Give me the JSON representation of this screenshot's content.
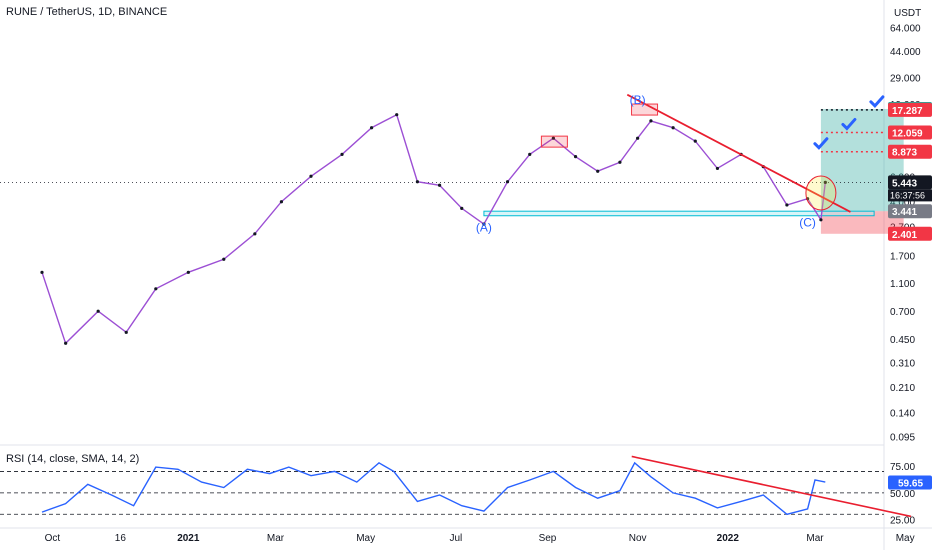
{
  "header": {
    "symbol_line": "RUNE / TetherUS, 1D, BINANCE"
  },
  "rsi_panel": {
    "label": "RSI (14, close, SMA, 14, 2)",
    "value": "59.65",
    "value_color": "#2962ff"
  },
  "chart_data": [
    {
      "type": "candlestick",
      "title": "RUNE / TetherUS, 1D, BINANCE",
      "scale": "log",
      "ylabel": "USDT",
      "yticks": [
        "64.000",
        "44.000",
        "29.000",
        "19.000",
        "12.000",
        "6.000",
        "4.000",
        "2.700",
        "1.700",
        "1.100",
        "0.700",
        "0.450",
        "0.310",
        "0.210",
        "0.140",
        "0.095"
      ],
      "xticks": [
        "Oct",
        "16",
        "2021",
        "Mar",
        "May",
        "Jul",
        "Sep",
        "Nov",
        "2022",
        "Mar",
        "May"
      ],
      "ylim": [
        0.09,
        70
      ],
      "up_color": "#131722",
      "down_color": "#9c4fd4",
      "last_price": 5.443,
      "countdown": "16:37:56",
      "series": [
        {
          "name": "price",
          "x": [
            "2020-09-24",
            "2020-10-10",
            "2020-11-01",
            "2020-11-20",
            "2020-12-10",
            "2021-01-01",
            "2021-01-25",
            "2021-02-15",
            "2021-03-05",
            "2021-03-25",
            "2021-04-15",
            "2021-05-05",
            "2021-05-22",
            "2021-06-05",
            "2021-06-20",
            "2021-07-05",
            "2021-07-20",
            "2021-08-05",
            "2021-08-20",
            "2021-09-05",
            "2021-09-20",
            "2021-10-05",
            "2021-10-20",
            "2021-11-01",
            "2021-11-10",
            "2021-11-25",
            "2021-12-10",
            "2021-12-25",
            "2022-01-10",
            "2022-01-25",
            "2022-02-10",
            "2022-02-24",
            "2022-03-05",
            "2022-03-08"
          ],
          "values": [
            1.3,
            0.42,
            0.7,
            0.5,
            1.0,
            1.3,
            1.6,
            2.4,
            4.0,
            6.0,
            8.5,
            13.0,
            16.0,
            5.5,
            5.2,
            3.6,
            2.8,
            5.5,
            8.5,
            11.0,
            8.2,
            6.5,
            7.5,
            11.0,
            14.5,
            13.0,
            10.5,
            6.8,
            8.5,
            7.0,
            3.8,
            4.2,
            3.0,
            5.443
          ]
        }
      ],
      "annotations": [
        {
          "text": "(A)",
          "x": "2021-07-20",
          "y": 2.5,
          "color": "#2962ff"
        },
        {
          "text": "(B)",
          "x": "2021-11-01",
          "y": 19.0,
          "color": "#2962ff"
        },
        {
          "text": "(C)",
          "x": "2022-02-24",
          "y": 2.7,
          "color": "#2962ff"
        }
      ],
      "support_zone": {
        "y_low": 3.2,
        "y_high": 3.441,
        "x_start": "2021-07-20",
        "x_end": "2022-04-10"
      },
      "trendline": {
        "x_start": "2021-10-25",
        "y_start": 22.0,
        "x_end": "2022-03-25",
        "y_end": 3.4,
        "color": "#e91e2f"
      },
      "position": {
        "entry": 3.441,
        "stop": 2.401,
        "target": 17.519,
        "x_start": "2022-03-05",
        "x_end": "2022-04-30"
      },
      "targets": [
        8.873,
        12.059,
        17.287
      ],
      "price_tags": [
        {
          "value": "17.519",
          "color": "#26a69a"
        },
        {
          "value": "17.287",
          "color": "#f23645"
        },
        {
          "value": "12.059",
          "color": "#f23645"
        },
        {
          "value": "8.873",
          "color": "#f23645"
        },
        {
          "value": "5.443",
          "color": "#131722"
        },
        {
          "value": "3.441",
          "color": "#787b86"
        },
        {
          "value": "2.401",
          "color": "#f23645"
        }
      ]
    },
    {
      "type": "line",
      "title": "RSI (14, close, SMA, 14, 2)",
      "yticks": [
        "75.00",
        "50.00",
        "25.00"
      ],
      "ylim": [
        20,
        90
      ],
      "levels": [
        70,
        50,
        30
      ],
      "series": [
        {
          "x": [
            "2020-09-24",
            "2020-10-10",
            "2020-10-25",
            "2020-11-10",
            "2020-11-25",
            "2020-12-10",
            "2020-12-25",
            "2021-01-10",
            "2021-01-25",
            "2021-02-10",
            "2021-02-25",
            "2021-03-10",
            "2021-03-25",
            "2021-04-10",
            "2021-04-25",
            "2021-05-10",
            "2021-05-20",
            "2021-06-05",
            "2021-06-20",
            "2021-07-05",
            "2021-07-20",
            "2021-08-05",
            "2021-08-20",
            "2021-09-05",
            "2021-09-20",
            "2021-10-05",
            "2021-10-20",
            "2021-10-30",
            "2021-11-10",
            "2021-11-25",
            "2021-12-10",
            "2021-12-25",
            "2022-01-10",
            "2022-01-25",
            "2022-02-10",
            "2022-02-24",
            "2022-03-01",
            "2022-03-08"
          ],
          "values": [
            32,
            40,
            58,
            48,
            38,
            74,
            72,
            60,
            55,
            72,
            68,
            74,
            66,
            70,
            60,
            78,
            70,
            42,
            48,
            38,
            33,
            55,
            62,
            70,
            55,
            45,
            52,
            78,
            65,
            50,
            45,
            36,
            42,
            48,
            30,
            35,
            62,
            60
          ]
        }
      ],
      "trendline": {
        "x_start": "2021-10-28",
        "y_start": 84,
        "x_end": "2022-05-05",
        "y_end": 28,
        "color": "#e91e2f"
      }
    }
  ]
}
